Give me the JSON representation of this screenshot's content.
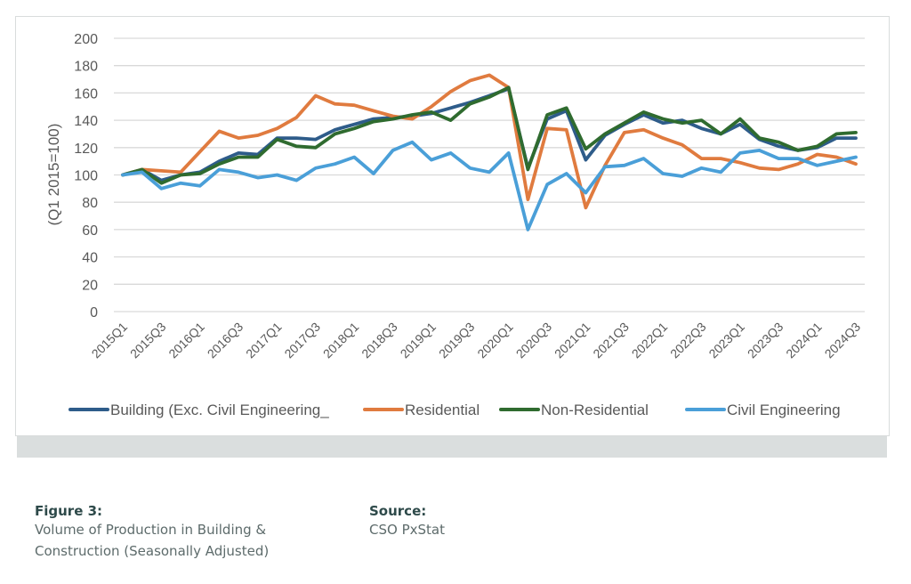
{
  "chart_data": {
    "type": "line",
    "title": "",
    "xlabel": "",
    "ylabel": "(Q1 2015=100)",
    "ylim": [
      0,
      200
    ],
    "yticks": [
      0,
      20,
      40,
      60,
      80,
      100,
      120,
      140,
      160,
      180,
      200
    ],
    "grid": true,
    "legend_position": "bottom",
    "x": [
      "2015Q1",
      "2015Q2",
      "2015Q3",
      "2015Q4",
      "2016Q1",
      "2016Q2",
      "2016Q3",
      "2016Q4",
      "2017Q1",
      "2017Q2",
      "2017Q3",
      "2017Q4",
      "2018Q1",
      "2018Q2",
      "2018Q3",
      "2018Q4",
      "2019Q1",
      "2019Q2",
      "2019Q3",
      "2019Q4",
      "2020Q1",
      "2020Q2",
      "2020Q3",
      "2020Q4",
      "2021Q1",
      "2021Q2",
      "2021Q3",
      "2021Q4",
      "2022Q1",
      "2022Q2",
      "2022Q3",
      "2022Q4",
      "2023Q1",
      "2023Q2",
      "2023Q3",
      "2023Q4",
      "2024Q1",
      "2024Q2",
      "2024Q3"
    ],
    "xtick_labels": [
      "2015Q1",
      "2015Q3",
      "2016Q1",
      "2016Q3",
      "2017Q1",
      "2017Q3",
      "2018Q1",
      "2018Q3",
      "2019Q1",
      "2019Q3",
      "2020Q1",
      "2020Q3",
      "2021Q1",
      "2021Q3",
      "2022Q1",
      "2022Q3",
      "2023Q1",
      "2023Q3",
      "2024Q1",
      "2024Q3"
    ],
    "series": [
      {
        "name": "Building (Exc. Civil Engineering_",
        "color": "#2e5c8a",
        "values": [
          100,
          104,
          96,
          100,
          102,
          110,
          116,
          115,
          127,
          127,
          126,
          133,
          137,
          141,
          142,
          143,
          145,
          149,
          153,
          158,
          163,
          105,
          141,
          147,
          111,
          129,
          137,
          144,
          138,
          140,
          134,
          130,
          137,
          126,
          121,
          118,
          120,
          127,
          127
        ]
      },
      {
        "name": "Residential",
        "color": "#e07b3f",
        "values": [
          100,
          104,
          103,
          102,
          117,
          132,
          127,
          129,
          134,
          142,
          158,
          152,
          151,
          147,
          143,
          141,
          150,
          161,
          169,
          173,
          164,
          82,
          134,
          133,
          76,
          107,
          131,
          133,
          127,
          122,
          112,
          112,
          109,
          105,
          104,
          108,
          115,
          113,
          108
        ]
      },
      {
        "name": "Non-Residential",
        "color": "#2f6b2f",
        "values": [
          100,
          104,
          94,
          100,
          101,
          108,
          113,
          113,
          126,
          121,
          120,
          130,
          134,
          139,
          141,
          144,
          146,
          140,
          152,
          157,
          164,
          104,
          144,
          149,
          119,
          130,
          138,
          146,
          141,
          138,
          140,
          130,
          141,
          127,
          124,
          118,
          121,
          130,
          131
        ]
      },
      {
        "name": "Civil Engineering",
        "color": "#4a9fd8",
        "values": [
          100,
          102,
          90,
          94,
          92,
          104,
          102,
          98,
          100,
          96,
          105,
          108,
          113,
          101,
          118,
          124,
          111,
          116,
          105,
          102,
          116,
          60,
          93,
          101,
          87,
          106,
          107,
          112,
          101,
          99,
          105,
          102,
          116,
          118,
          112,
          112,
          107,
          110,
          113
        ]
      }
    ]
  },
  "caption": {
    "figure_label": "Figure 3:",
    "figure_text_line1": "Volume of Production in Building &",
    "figure_text_line2": "Construction (Seasonally Adjusted)",
    "source_label": "Source:",
    "source_text": "CSO PxStat"
  }
}
